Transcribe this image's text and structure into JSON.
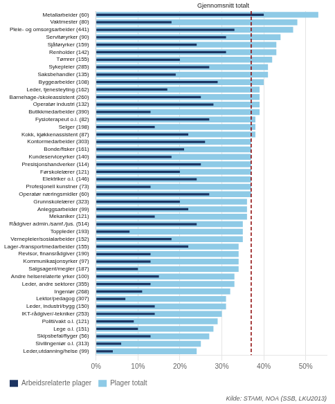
{
  "chart_data": {
    "type": "bar",
    "orientation": "horizontal",
    "categories": [
      "Metallarbeider (60)",
      "Vaktmester (80)",
      "Pleie- og omsorgsarbeider (441)",
      "Servitøryrker (90)",
      "Sjåføryrker (159)",
      "Renholder (142)",
      "Tømrer (155)",
      "Sykepleier (285)",
      "Saksbehandler (135)",
      "Byggearbeider (108)",
      "Leder, tjenesteyting (162)",
      "Barnehage-/skoleassistent (260)",
      "Operatør industri (132)",
      "Butikkmedarbeider (390)",
      "Fysioterapeut o.l. (82)",
      "Selger (198)",
      "Kokk, kjøkkenassistent (87)",
      "Kontormedarbeider (303)",
      "Bonde/fisker (161)",
      "Kundeserviceyrker (140)",
      "Presisjonshandverker (114)",
      "Førskolelærer (121)",
      "Elektriker o.l. (146)",
      "Profesjonell kunstner (73)",
      "Operatør næringsmidler (60)",
      "Grunnskolelærer (323)",
      "Anleggsarbeider (99)",
      "Mekaniker (121)",
      "Rådgiver admin./samf./jus. (514)",
      "Toppleder (193)",
      "Vernepleier/sosialarbeider (152)",
      "Lager-/transportmedarbeider (155)",
      "Revisor, finansrådgiver (190)",
      "Kommunikasjonsyrker (97)",
      "Salgsagent/megler (187)",
      "Andre helserelaterte yrker (100)",
      "Leder, andre sektorer (355)",
      "Ingeniør (268)",
      "Lektor/pedagog (307)",
      "Leder, industri/bygg (150)",
      "IKT-rådgiver/-tekniker (253)",
      "Politi/vakt o.l. (121)",
      "Lege o.l. (151)",
      "Skipsbefal/flyger (56)",
      "Sivilingeniør o.l. (313)",
      "Leder,utdanning/helse (99)"
    ],
    "series": [
      {
        "name": "Arbeidsrelaterte plager",
        "color": "#1c3461",
        "values": [
          40,
          18,
          33,
          31,
          24,
          31,
          20,
          27,
          19,
          29,
          17,
          25,
          28,
          13,
          27,
          14,
          22,
          26,
          21,
          18,
          25,
          20,
          24,
          13,
          27,
          20,
          22,
          14,
          24,
          8,
          18,
          22,
          13,
          13,
          10,
          15,
          13,
          11,
          7,
          14,
          14,
          9,
          10,
          13,
          6,
          4
        ]
      },
      {
        "name": "Plager totalt",
        "color": "#8ecae6",
        "values": [
          53,
          48,
          47,
          44,
          43,
          43,
          42,
          41,
          41,
          40,
          39,
          39,
          39,
          39,
          38,
          38,
          38,
          37,
          37,
          37,
          37,
          37,
          37,
          37,
          37,
          36,
          36,
          36,
          35,
          35,
          35,
          34,
          34,
          34,
          34,
          33,
          33,
          32,
          31,
          31,
          30,
          29,
          28,
          27,
          25,
          24
        ]
      }
    ],
    "xlim": [
      0,
      55
    ],
    "xticks": [
      {
        "value": 0,
        "label": "0%"
      },
      {
        "value": 10,
        "label": "10%"
      },
      {
        "value": 20,
        "label": "20%"
      },
      {
        "value": 30,
        "label": "30%"
      },
      {
        "value": 40,
        "label": "40%"
      },
      {
        "value": 50,
        "label": "50%"
      }
    ],
    "grid": true,
    "legend": "lower left",
    "annotations": [
      {
        "type": "vline",
        "x": 37,
        "label": "Gjennomsnitt totalt",
        "color": "#8b0000",
        "line_style": "dashed"
      }
    ],
    "source": "Kilde: STAMI, NOA (SSB, LKU2013)"
  }
}
